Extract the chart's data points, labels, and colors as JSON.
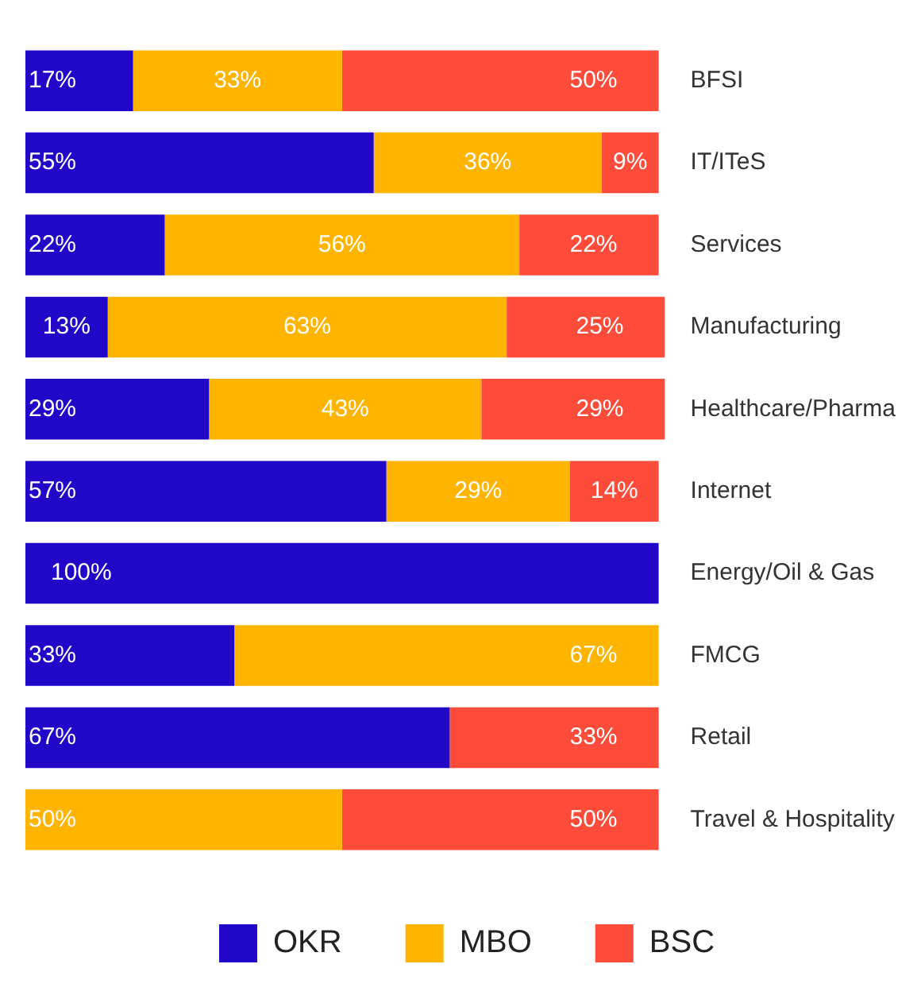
{
  "chart_data": {
    "type": "bar",
    "orientation": "horizontal",
    "stacked": true,
    "tick_labels": "y",
    "grid": false,
    "legend": "bottom",
    "categories": [
      "BFSI",
      "IT/ITeS",
      "Services",
      "Manufacturing",
      "Healthcare/Pharma",
      "Internet",
      "Energy/Oil & Gas",
      "FMCG",
      "Retail",
      "Travel & Hospitality"
    ],
    "series": [
      {
        "name": "OKR",
        "color": "#2108c9",
        "values": [
          17,
          55,
          22,
          13,
          29,
          57,
          100,
          33,
          67,
          null
        ],
        "value_labels": [
          "17%",
          "55%",
          "22%",
          "13%",
          "29%",
          "57%",
          "100%",
          "33%",
          "67%",
          null
        ]
      },
      {
        "name": "MBO",
        "color": "#ffb400",
        "values": [
          33,
          36,
          56,
          63,
          43,
          29,
          null,
          67,
          null,
          50
        ],
        "value_labels": [
          "33%",
          "36%",
          "56%",
          "63%",
          "43%",
          "29%",
          null,
          "67%",
          null,
          "50%"
        ]
      },
      {
        "name": "BSC",
        "color": "#ff4b3a",
        "values": [
          50,
          9,
          22,
          25,
          29,
          14,
          null,
          null,
          33,
          50
        ],
        "value_labels": [
          "50%",
          "9%",
          "22%",
          "25%",
          "29%",
          "14%",
          null,
          null,
          "33%",
          "50%"
        ]
      }
    ]
  }
}
